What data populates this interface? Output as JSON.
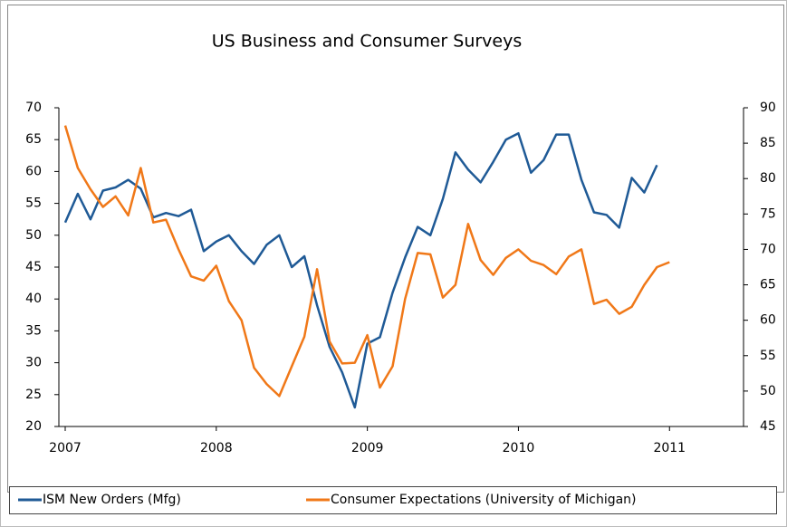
{
  "chart_data": {
    "type": "line",
    "title": "US Business and Consumer Surveys",
    "x": [
      2007,
      2007.083,
      2007.167,
      2007.25,
      2007.333,
      2007.417,
      2007.5,
      2007.583,
      2007.667,
      2007.75,
      2007.833,
      2007.917,
      2008,
      2008.083,
      2008.167,
      2008.25,
      2008.333,
      2008.417,
      2008.5,
      2008.583,
      2008.667,
      2008.75,
      2008.833,
      2008.917,
      2009,
      2009.083,
      2009.167,
      2009.25,
      2009.333,
      2009.417,
      2009.5,
      2009.583,
      2009.667,
      2009.75,
      2009.833,
      2009.917,
      2010,
      2010.083,
      2010.167,
      2010.25,
      2010.333,
      2010.417,
      2010.5,
      2010.583,
      2010.667,
      2010.75,
      2010.833,
      2010.917,
      2011
    ],
    "series": [
      {
        "name": "ISM New Orders (Mfg)",
        "color": "#1f5a96",
        "axis": "y",
        "values": [
          52,
          56.5,
          52.5,
          57,
          57.5,
          58.7,
          57.3,
          52.8,
          53.5,
          53,
          54,
          47.5,
          49,
          50,
          47.5,
          45.5,
          48.5,
          50,
          45,
          46.7,
          39,
          32.5,
          28.5,
          23,
          33,
          34,
          41,
          46.5,
          51.3,
          50,
          55.7,
          63,
          60.3,
          58.3,
          61.5,
          65,
          66,
          59.8,
          61.8,
          65.8,
          65.8,
          58.7,
          53.6,
          53.2,
          51.2,
          59,
          56.7,
          61,
          null
        ]
      },
      {
        "name": "Consumer Expectations (University of Michigan)",
        "color": "#f07818",
        "axis": "y2",
        "values": [
          87.5,
          81.5,
          78.5,
          76,
          77.5,
          74.8,
          81.5,
          73.8,
          74.2,
          70,
          66.2,
          65.6,
          67.7,
          62.7,
          60,
          53.3,
          51,
          49.3,
          53.5,
          57.7,
          67.2,
          57,
          53.9,
          54,
          57.9,
          50.5,
          53.5,
          63,
          69.5,
          69.3,
          63.2,
          65,
          73.6,
          68.5,
          66.4,
          68.8,
          70,
          68.4,
          67.8,
          66.5,
          69,
          70,
          62.3,
          62.9,
          60.9,
          61.9,
          65,
          67.5,
          68.2
        ]
      }
    ],
    "xlim": [
      2006.958,
      2011.49
    ],
    "xticks": [
      2007,
      2008,
      2009,
      2010,
      2011
    ],
    "ylim": [
      20,
      70
    ],
    "yticks": [
      20,
      25,
      30,
      35,
      40,
      45,
      50,
      55,
      60,
      65,
      70
    ],
    "y2lim": [
      45,
      90
    ],
    "y2ticks": [
      45,
      50,
      55,
      60,
      65,
      70,
      75,
      80,
      85,
      90
    ],
    "legend": "bottom"
  }
}
